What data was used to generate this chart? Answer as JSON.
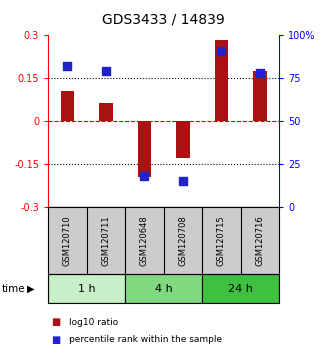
{
  "title": "GDS3433 / 14839",
  "samples": [
    "GSM120710",
    "GSM120711",
    "GSM120648",
    "GSM120708",
    "GSM120715",
    "GSM120716"
  ],
  "log10_ratio": [
    0.105,
    0.065,
    -0.195,
    -0.13,
    0.285,
    0.175
  ],
  "percentile_rank": [
    82,
    79,
    18,
    15,
    91,
    78
  ],
  "groups": [
    {
      "label": "1 h",
      "indices": [
        0,
        1
      ],
      "color": "#c8f0c8"
    },
    {
      "label": "4 h",
      "indices": [
        2,
        3
      ],
      "color": "#80d880"
    },
    {
      "label": "24 h",
      "indices": [
        4,
        5
      ],
      "color": "#40c040"
    }
  ],
  "ylim": [
    -0.3,
    0.3
  ],
  "yticks_left": [
    -0.3,
    -0.15,
    0,
    0.15,
    0.3
  ],
  "yticks_right_labels": [
    "0",
    "25",
    "50",
    "75",
    "100%"
  ],
  "bar_color": "#aa1111",
  "dot_color": "#2222cc",
  "bar_width": 0.35,
  "dot_size": 30,
  "background_color": "#ffffff",
  "plot_bg": "#ffffff",
  "zero_line_color": "#cc0000",
  "sample_label_area_color": "#cccccc",
  "title_fontsize": 10,
  "tick_fontsize": 7,
  "label_fontsize": 7.5
}
